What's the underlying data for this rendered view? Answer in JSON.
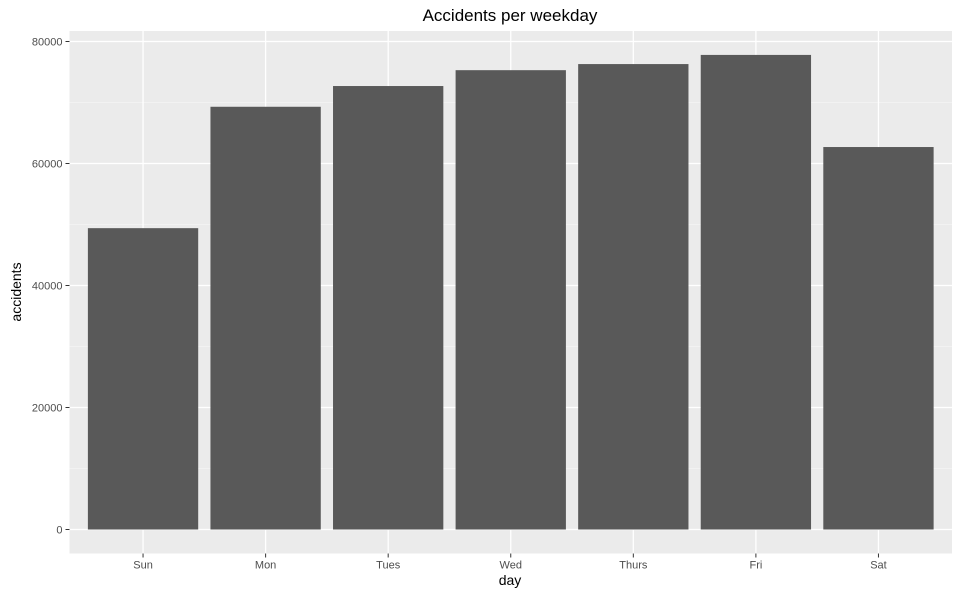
{
  "chart_data": {
    "type": "bar",
    "title": "Accidents per weekday",
    "xlabel": "day",
    "ylabel": "accidents",
    "categories": [
      "Sun",
      "Mon",
      "Tues",
      "Wed",
      "Thurs",
      "Fri",
      "Sat"
    ],
    "values": [
      49400,
      69300,
      72700,
      75300,
      76300,
      77800,
      62700
    ],
    "ylim": [
      0,
      80000
    ],
    "yticks": [
      0,
      20000,
      40000,
      60000,
      80000
    ],
    "ytick_labels": [
      "0",
      "20000",
      "40000",
      "60000",
      "80000"
    ],
    "grid": true,
    "legend": "none",
    "colors": {
      "bar": "#595959",
      "panel_background": "#ebebeb",
      "grid_major": "#ffffff",
      "grid_minor": "#f5f5f5",
      "axis_text": "#4d4d4d",
      "title_text": "#000000"
    }
  }
}
